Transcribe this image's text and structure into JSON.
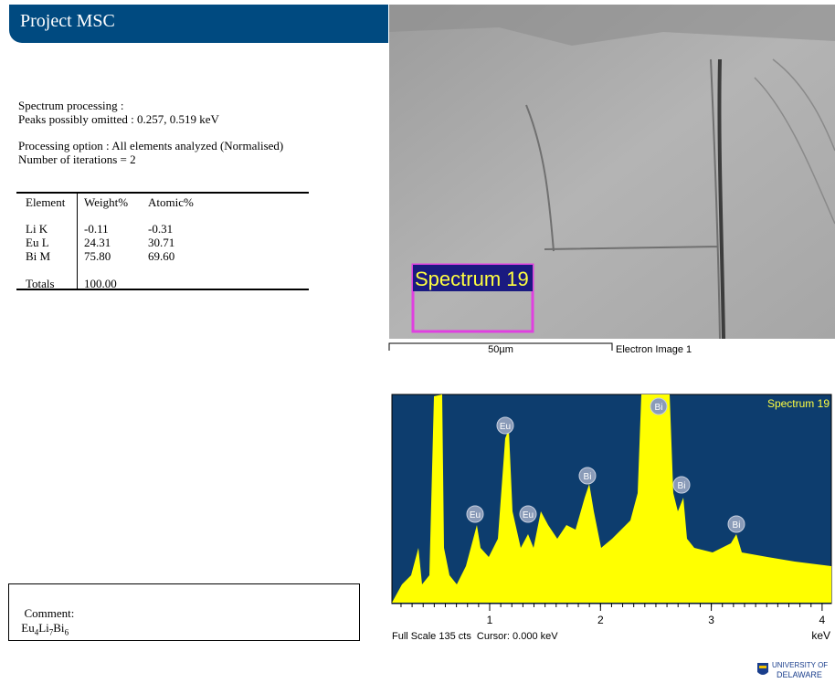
{
  "header": {
    "title": "Project MSC"
  },
  "processing": {
    "lines": [
      "Spectrum processing :",
      "Peaks possibly omitted : 0.257, 0.519 keV"
    ]
  },
  "options": {
    "lines": [
      "Processing option : All elements analyzed (Normalised)",
      "Number of iterations = 2"
    ]
  },
  "table": {
    "header": [
      "Element",
      "Weight%",
      "Atomic%"
    ],
    "rows": [
      [
        "Li K",
        "-0.11",
        "-0.31"
      ],
      [
        "Eu L",
        "24.31",
        "30.71"
      ],
      [
        "Bi M",
        "75.80",
        "69.60"
      ]
    ],
    "totals": [
      "Totals",
      "100.00"
    ]
  },
  "image": {
    "spectrum_label": "Spectrum 19",
    "scale": "50µm",
    "caption": "Electron Image 1"
  },
  "spectrum": {
    "title": "Spectrum 19",
    "peaks": [
      "Eu",
      "Eu",
      "Eu",
      "Bi",
      "Bi",
      "Bi",
      "Bi"
    ],
    "xticks": [
      1,
      2,
      3,
      4
    ],
    "unit": "keV",
    "status": "Full Scale 135 cts  Cursor: 0.000 keV"
  },
  "comment": {
    "label": "Comment:",
    "formula": [
      {
        "el": "Eu",
        "sub": "4"
      },
      {
        "el": "Li",
        "sub": "7"
      },
      {
        "el": "Bi",
        "sub": "6"
      }
    ]
  },
  "logo": {
    "lines": [
      "UNIVERSITY OF",
      "DELAWARE"
    ]
  }
}
